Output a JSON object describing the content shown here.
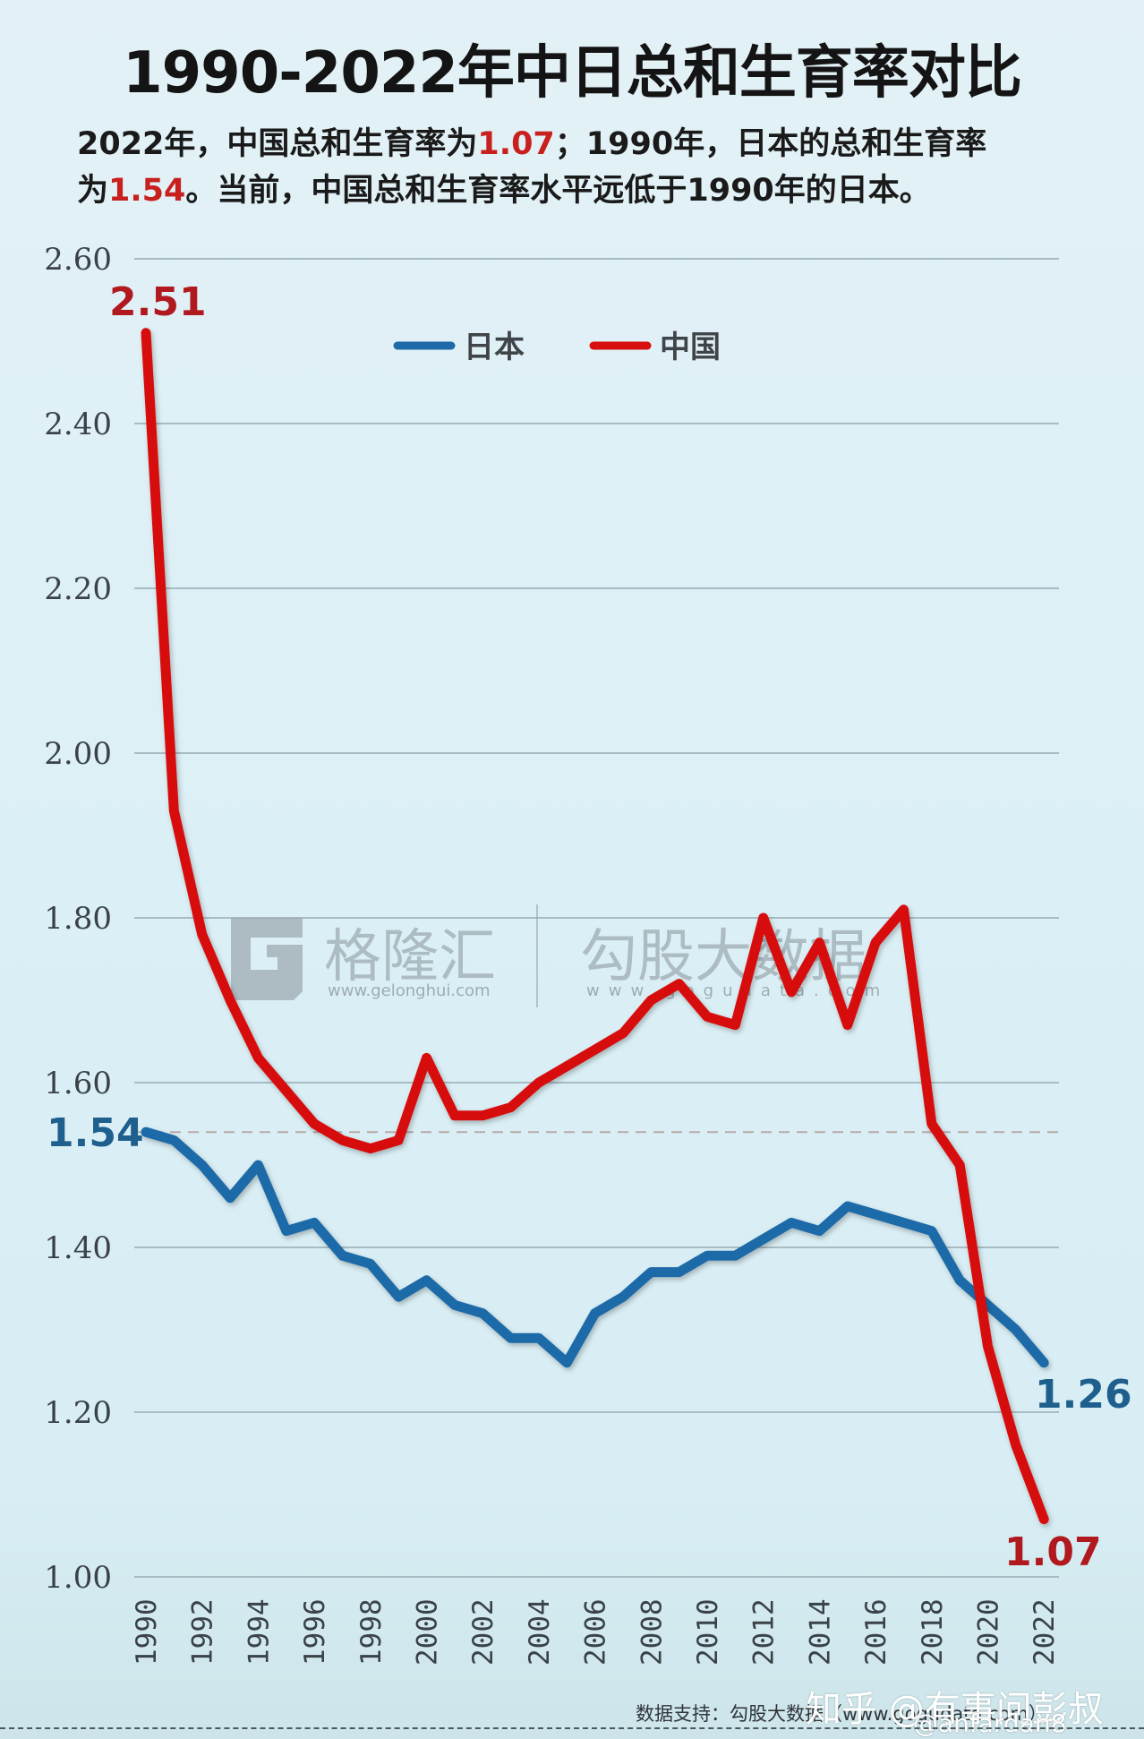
{
  "header": {
    "title": "1990-2022年中日总和生育率对比",
    "subtitle_parts": {
      "p1": "2022年，中国总和生育率为",
      "v1": "1.07",
      "p2": "；1990年，日本的总和生育率",
      "p3": "为",
      "v2": "1.54",
      "p4": "。当前，中国总和生育率水平远低于1990年的日本。"
    }
  },
  "legend": {
    "japan": "日本",
    "china": "中国"
  },
  "annotations": {
    "china_start": "2.51",
    "china_end": "1.07",
    "japan_start": "1.54",
    "japan_end": "1.26"
  },
  "watermarks": {
    "logo_text": "格隆汇",
    "logo_url": "www.gelonghui.com",
    "brand2": "勾股大数据",
    "brand2_url": "www.gogudata.com"
  },
  "footer": {
    "source": "数据支持：勾股大数据（www.gogudata.com）",
    "zhihu": "知乎 @有事问彭叔",
    "weibo": "@anfardan8"
  },
  "colors": {
    "china": "#d7100f",
    "japan": "#1f6aa8",
    "china_label": "#b01a1e",
    "japan_label": "#1f5f8e",
    "grid": "#a9bcc3"
  },
  "chart_data": {
    "type": "line",
    "title": "1990-2022年中日总和生育率对比",
    "xlabel": "",
    "ylabel": "",
    "x": [
      1990,
      1991,
      1992,
      1993,
      1994,
      1995,
      1996,
      1997,
      1998,
      1999,
      2000,
      2001,
      2002,
      2003,
      2004,
      2005,
      2006,
      2007,
      2008,
      2009,
      2010,
      2011,
      2012,
      2013,
      2014,
      2015,
      2016,
      2017,
      2018,
      2019,
      2020,
      2021,
      2022
    ],
    "x_tick_labels": [
      "1990",
      "1992",
      "1994",
      "1996",
      "1998",
      "2000",
      "2002",
      "2004",
      "2006",
      "2008",
      "2010",
      "2012",
      "2014",
      "2016",
      "2018",
      "2020",
      "2022"
    ],
    "y_tick_labels": [
      "1.00",
      "1.20",
      "1.40",
      "1.60",
      "1.80",
      "2.00",
      "2.20",
      "2.40",
      "2.60"
    ],
    "ylim": [
      1.0,
      2.6
    ],
    "grid": true,
    "legend_position": "top-center",
    "reference_line": {
      "value": 1.54,
      "style": "dashed"
    },
    "series": [
      {
        "name": "日本",
        "values": [
          1.54,
          1.53,
          1.5,
          1.46,
          1.5,
          1.42,
          1.43,
          1.39,
          1.38,
          1.34,
          1.36,
          1.33,
          1.32,
          1.29,
          1.29,
          1.26,
          1.32,
          1.34,
          1.37,
          1.37,
          1.39,
          1.39,
          1.41,
          1.43,
          1.42,
          1.45,
          1.44,
          1.43,
          1.42,
          1.36,
          1.33,
          1.3,
          1.26
        ]
      },
      {
        "name": "中国",
        "values": [
          2.51,
          1.93,
          1.78,
          1.7,
          1.63,
          1.59,
          1.55,
          1.53,
          1.52,
          1.53,
          1.63,
          1.56,
          1.56,
          1.57,
          1.6,
          1.62,
          1.64,
          1.66,
          1.7,
          1.72,
          1.68,
          1.67,
          1.8,
          1.71,
          1.77,
          1.67,
          1.77,
          1.81,
          1.55,
          1.5,
          1.28,
          1.16,
          1.07
        ]
      }
    ]
  }
}
